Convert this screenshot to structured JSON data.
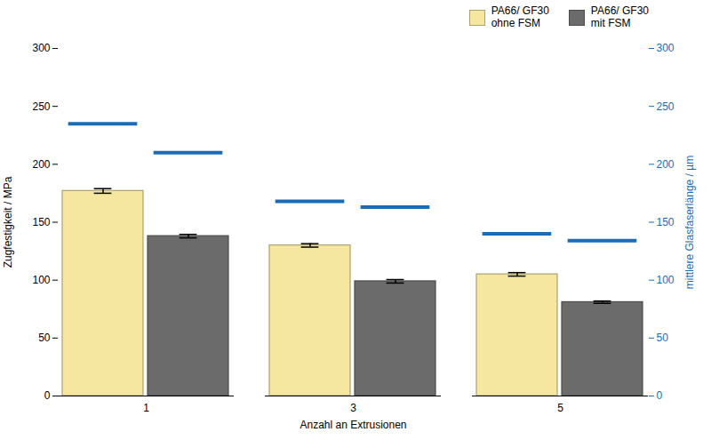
{
  "chart_data": {
    "type": "bar",
    "xlabel": "Anzahl an Extrusionen",
    "ylabel": "Zugfestigkeit / MPa",
    "y2label": "mittlere Glasfaserlänge / µm",
    "categories": [
      "1",
      "3",
      "5"
    ],
    "series": [
      {
        "name": "PA66/ GF30\nohne FSM",
        "color": "#F5E6A0",
        "values": [
          177,
          130,
          105
        ],
        "yerr": [
          2,
          1.5,
          1.5
        ]
      },
      {
        "name": "PA66/ GF30\nmit FSM",
        "color": "#6B6B6B",
        "values": [
          138,
          99,
          81
        ],
        "yerr": [
          1.5,
          1.5,
          1.0
        ]
      },
      {
        "type": "scatter",
        "marker": "dash",
        "axis": "y2",
        "color": "#1C6BB5",
        "values": [
          235,
          168,
          140
        ]
      },
      {
        "type": "scatter",
        "marker": "dash",
        "axis": "y2",
        "color": "#1C6BB5",
        "values": [
          210,
          163,
          134
        ]
      }
    ],
    "ylim": [
      0,
      300
    ],
    "yticks": [
      0,
      50,
      100,
      150,
      200,
      250,
      300
    ],
    "y2lim": [
      0,
      300
    ],
    "y2ticks": [
      0,
      50,
      100,
      150,
      200,
      250,
      300
    ],
    "legend": "upper right",
    "grid": false
  }
}
